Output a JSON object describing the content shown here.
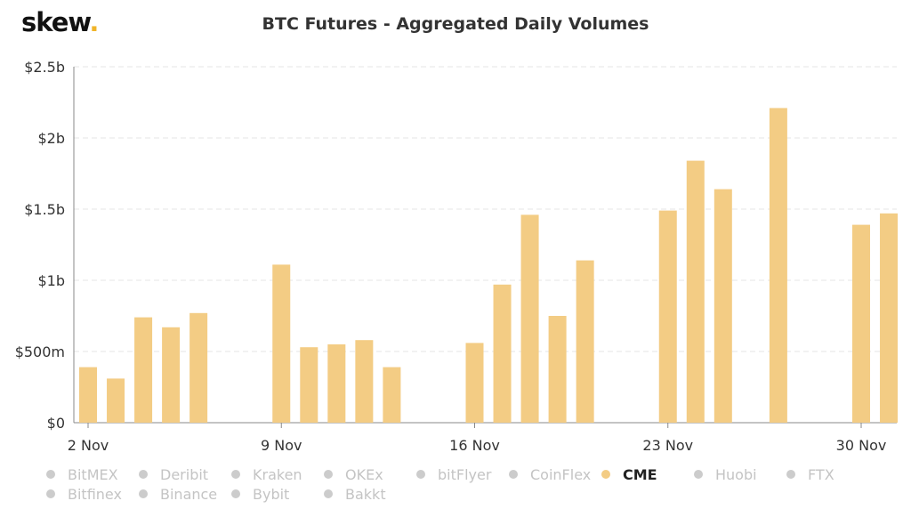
{
  "brand": {
    "name": "skew",
    "dot": "."
  },
  "colors": {
    "bar": "#f3cc84",
    "grid": "#e6e6e6",
    "inactive": "#cccccc"
  },
  "legend": {
    "rows": [
      [
        {
          "label": "BitMEX",
          "active": false
        },
        {
          "label": "Deribit",
          "active": false
        },
        {
          "label": "Kraken",
          "active": false
        },
        {
          "label": "OKEx",
          "active": false
        },
        {
          "label": "bitFlyer",
          "active": false
        },
        {
          "label": "CoinFlex",
          "active": false
        },
        {
          "label": "CME",
          "active": true
        },
        {
          "label": "Huobi",
          "active": false
        },
        {
          "label": "FTX",
          "active": false
        }
      ],
      [
        {
          "label": "Bitfinex",
          "active": false
        },
        {
          "label": "Binance",
          "active": false
        },
        {
          "label": "Bybit",
          "active": false
        },
        {
          "label": "Bakkt",
          "active": false
        }
      ]
    ]
  },
  "chart_data": {
    "type": "bar",
    "title": "BTC Futures - Aggregated Daily Volumes",
    "xlabel": "",
    "ylabel": "",
    "ylim": [
      0,
      2.5
    ],
    "y_ticks": [
      {
        "value": 0,
        "label": "$0"
      },
      {
        "value": 0.5,
        "label": "$500m"
      },
      {
        "value": 1.0,
        "label": "$1b"
      },
      {
        "value": 1.5,
        "label": "$1.5b"
      },
      {
        "value": 2.0,
        "label": "$2b"
      },
      {
        "value": 2.5,
        "label": "$2.5b"
      }
    ],
    "x_range": [
      0.5,
      30.5
    ],
    "x_ticks": [
      {
        "x": 2,
        "label": "2 Nov"
      },
      {
        "x": 9,
        "label": "9 Nov"
      },
      {
        "x": 16,
        "label": "16 Nov"
      },
      {
        "x": 23,
        "label": "23 Nov"
      },
      {
        "x": 30,
        "label": "30 Nov"
      }
    ],
    "grid": true,
    "series": [
      {
        "name": "CME",
        "points": [
          {
            "x": 2,
            "value": 0.39
          },
          {
            "x": 3,
            "value": 0.31
          },
          {
            "x": 4,
            "value": 0.74
          },
          {
            "x": 5,
            "value": 0.67
          },
          {
            "x": 6,
            "value": 0.77
          },
          {
            "x": 9,
            "value": 1.11
          },
          {
            "x": 10,
            "value": 0.53
          },
          {
            "x": 11,
            "value": 0.55
          },
          {
            "x": 12,
            "value": 0.58
          },
          {
            "x": 13,
            "value": 0.39
          },
          {
            "x": 16,
            "value": 0.56
          },
          {
            "x": 17,
            "value": 0.97
          },
          {
            "x": 18,
            "value": 1.46
          },
          {
            "x": 19,
            "value": 0.75
          },
          {
            "x": 20,
            "value": 1.14
          },
          {
            "x": 23,
            "value": 1.49
          },
          {
            "x": 24,
            "value": 1.84
          },
          {
            "x": 25,
            "value": 1.64
          },
          {
            "x": 27,
            "value": 2.21
          },
          {
            "x": 30,
            "value": 1.39
          },
          {
            "x": 31,
            "value": 1.47
          }
        ]
      }
    ]
  }
}
